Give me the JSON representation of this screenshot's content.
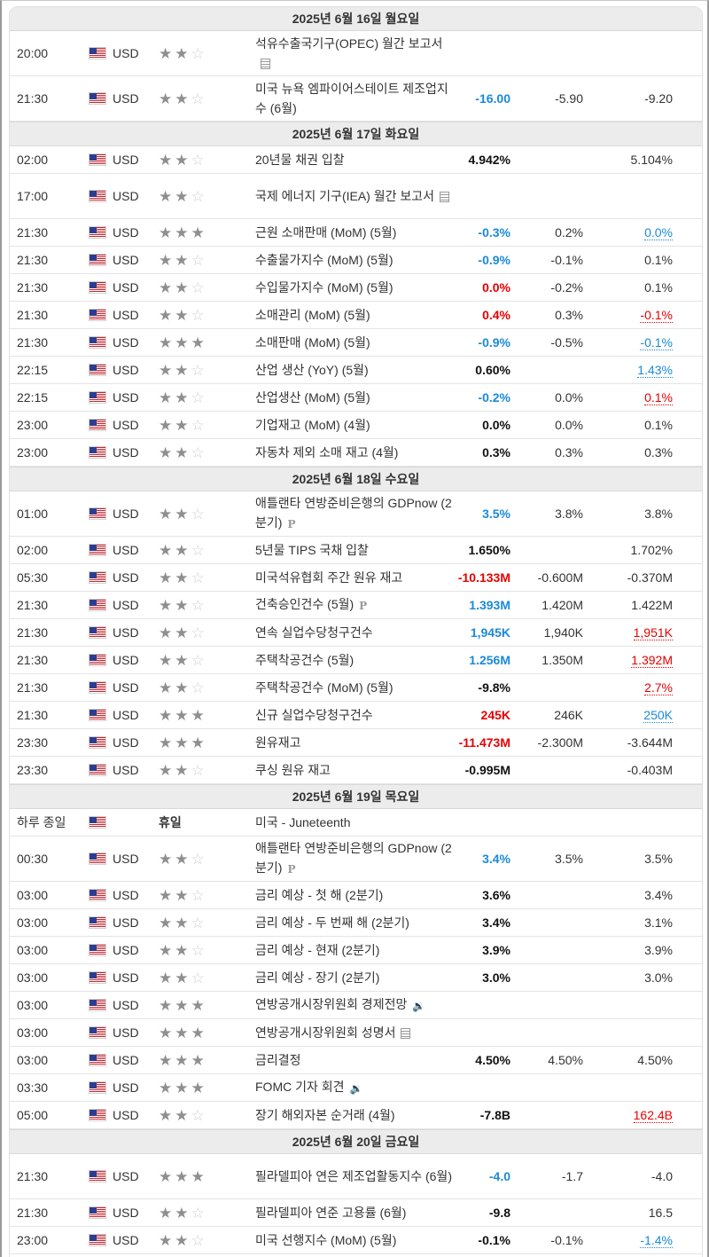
{
  "days": [
    {
      "label": "2025년 6월 16일 월요일",
      "events": [
        {
          "time": "20:00",
          "currency": "USD",
          "importance": 2,
          "event": "석유수출국기구(OPEC) 월간 보고서",
          "icon": "doc",
          "actual": "",
          "actual_class": "",
          "forecast": "",
          "previous": "",
          "previous_class": "",
          "tall": true
        },
        {
          "time": "21:30",
          "currency": "USD",
          "importance": 2,
          "event": "미국 뉴욕 엠파이어스테이트 제조업지수 (6월)",
          "icon": "",
          "actual": "-16.00",
          "actual_class": "pos",
          "forecast": "-5.90",
          "previous": "-9.20",
          "previous_class": "plain",
          "tall": true
        }
      ]
    },
    {
      "label": "2025년 6월 17일 화요일",
      "events": [
        {
          "time": "02:00",
          "currency": "USD",
          "importance": 2,
          "event": "20년물 채권 입찰",
          "icon": "",
          "actual": "4.942%",
          "actual_class": "neu",
          "forecast": "",
          "previous": "5.104%",
          "previous_class": "plain",
          "tall": false
        },
        {
          "time": "17:00",
          "currency": "USD",
          "importance": 2,
          "event": "국제 에너지 기구(IEA) 월간 보고서",
          "icon": "doc",
          "actual": "",
          "actual_class": "",
          "forecast": "",
          "previous": "",
          "previous_class": "",
          "tall": true
        },
        {
          "time": "21:30",
          "currency": "USD",
          "importance": 3,
          "event": "근원 소매판매 (MoM) (5월)",
          "icon": "",
          "actual": "-0.3%",
          "actual_class": "pos",
          "forecast": "0.2%",
          "previous": "0.0%",
          "previous_class": "up",
          "tall": false
        },
        {
          "time": "21:30",
          "currency": "USD",
          "importance": 2,
          "event": "수출물가지수 (MoM) (5월)",
          "icon": "",
          "actual": "-0.9%",
          "actual_class": "pos",
          "forecast": "-0.1%",
          "previous": "0.1%",
          "previous_class": "plain",
          "tall": false
        },
        {
          "time": "21:30",
          "currency": "USD",
          "importance": 2,
          "event": "수입물가지수 (MoM) (5월)",
          "icon": "",
          "actual": "0.0%",
          "actual_class": "neg",
          "forecast": "-0.2%",
          "previous": "0.1%",
          "previous_class": "plain",
          "tall": false
        },
        {
          "time": "21:30",
          "currency": "USD",
          "importance": 2,
          "event": "소매관리 (MoM) (5월)",
          "icon": "",
          "actual": "0.4%",
          "actual_class": "neg",
          "forecast": "0.3%",
          "previous": "-0.1%",
          "previous_class": "down",
          "tall": false
        },
        {
          "time": "21:30",
          "currency": "USD",
          "importance": 3,
          "event": "소매판매 (MoM) (5월)",
          "icon": "",
          "actual": "-0.9%",
          "actual_class": "pos",
          "forecast": "-0.5%",
          "previous": "-0.1%",
          "previous_class": "up",
          "tall": false
        },
        {
          "time": "22:15",
          "currency": "USD",
          "importance": 2,
          "event": "산업 생산 (YoY) (5월)",
          "icon": "",
          "actual": "0.60%",
          "actual_class": "neu",
          "forecast": "",
          "previous": "1.43%",
          "previous_class": "up",
          "tall": false
        },
        {
          "time": "22:15",
          "currency": "USD",
          "importance": 2,
          "event": "산업생산 (MoM) (5월)",
          "icon": "",
          "actual": "-0.2%",
          "actual_class": "pos",
          "forecast": "0.0%",
          "previous": "0.1%",
          "previous_class": "down",
          "tall": false
        },
        {
          "time": "23:00",
          "currency": "USD",
          "importance": 2,
          "event": "기업재고 (MoM) (4월)",
          "icon": "",
          "actual": "0.0%",
          "actual_class": "neu",
          "forecast": "0.0%",
          "previous": "0.1%",
          "previous_class": "plain",
          "tall": false
        },
        {
          "time": "23:00",
          "currency": "USD",
          "importance": 2,
          "event": "자동차 제외 소매 재고 (4월)",
          "icon": "",
          "actual": "0.3%",
          "actual_class": "neu",
          "forecast": "0.3%",
          "previous": "0.3%",
          "previous_class": "plain",
          "tall": false
        }
      ]
    },
    {
      "label": "2025년 6월 18일 수요일",
      "events": [
        {
          "time": "01:00",
          "currency": "USD",
          "importance": 2,
          "event": "애틀랜타 연방준비은행의 GDPnow (2분기)",
          "icon": "pre",
          "actual": "3.5%",
          "actual_class": "pos",
          "forecast": "3.8%",
          "previous": "3.8%",
          "previous_class": "plain",
          "tall": true
        },
        {
          "time": "02:00",
          "currency": "USD",
          "importance": 2,
          "event": "5년물 TIPS 국채 입찰",
          "icon": "",
          "actual": "1.650%",
          "actual_class": "neu",
          "forecast": "",
          "previous": "1.702%",
          "previous_class": "plain",
          "tall": false
        },
        {
          "time": "05:30",
          "currency": "USD",
          "importance": 2,
          "event": "미국석유협회 주간 원유 재고",
          "icon": "",
          "actual": "-10.133M",
          "actual_class": "neg",
          "forecast": "-0.600M",
          "previous": "-0.370M",
          "previous_class": "plain",
          "tall": false
        },
        {
          "time": "21:30",
          "currency": "USD",
          "importance": 2,
          "event": "건축승인건수 (5월)",
          "icon": "pre",
          "actual": "1.393M",
          "actual_class": "pos",
          "forecast": "1.420M",
          "previous": "1.422M",
          "previous_class": "plain",
          "tall": false
        },
        {
          "time": "21:30",
          "currency": "USD",
          "importance": 2,
          "event": "연속 실업수당청구건수",
          "icon": "",
          "actual": "1,945K",
          "actual_class": "pos",
          "forecast": "1,940K",
          "previous": "1,951K",
          "previous_class": "down",
          "tall": false
        },
        {
          "time": "21:30",
          "currency": "USD",
          "importance": 2,
          "event": "주택착공건수 (5월)",
          "icon": "",
          "actual": "1.256M",
          "actual_class": "pos",
          "forecast": "1.350M",
          "previous": "1.392M",
          "previous_class": "down",
          "tall": false
        },
        {
          "time": "21:30",
          "currency": "USD",
          "importance": 2,
          "event": "주택착공건수 (MoM) (5월)",
          "icon": "",
          "actual": "-9.8%",
          "actual_class": "neu",
          "forecast": "",
          "previous": "2.7%",
          "previous_class": "down",
          "tall": false
        },
        {
          "time": "21:30",
          "currency": "USD",
          "importance": 3,
          "event": "신규 실업수당청구건수",
          "icon": "",
          "actual": "245K",
          "actual_class": "neg",
          "forecast": "246K",
          "previous": "250K",
          "previous_class": "up",
          "tall": false
        },
        {
          "time": "23:30",
          "currency": "USD",
          "importance": 3,
          "event": "원유재고",
          "icon": "",
          "actual": "-11.473M",
          "actual_class": "neg",
          "forecast": "-2.300M",
          "previous": "-3.644M",
          "previous_class": "plain",
          "tall": false
        },
        {
          "time": "23:30",
          "currency": "USD",
          "importance": 2,
          "event": "쿠싱 원유 재고",
          "icon": "",
          "actual": "-0.995M",
          "actual_class": "neu",
          "forecast": "",
          "previous": "-0.403M",
          "previous_class": "plain",
          "tall": false
        }
      ]
    },
    {
      "label": "2025년 6월 19일 목요일",
      "events": [
        {
          "time": "하루 종일",
          "currency": "",
          "importance": 0,
          "holiday_label": "휴일",
          "event": "미국 - Juneteenth",
          "icon": "",
          "actual": "",
          "actual_class": "",
          "forecast": "",
          "previous": "",
          "previous_class": "",
          "tall": false
        },
        {
          "time": "00:30",
          "currency": "USD",
          "importance": 2,
          "event": "애틀랜타 연방준비은행의 GDPnow (2분기)",
          "icon": "pre",
          "actual": "3.4%",
          "actual_class": "pos",
          "forecast": "3.5%",
          "previous": "3.5%",
          "previous_class": "plain",
          "tall": true
        },
        {
          "time": "03:00",
          "currency": "USD",
          "importance": 2,
          "event": "금리 예상 - 첫 해 (2분기)",
          "icon": "",
          "actual": "3.6%",
          "actual_class": "neu",
          "forecast": "",
          "previous": "3.4%",
          "previous_class": "plain",
          "tall": false
        },
        {
          "time": "03:00",
          "currency": "USD",
          "importance": 2,
          "event": "금리 예상 - 두 번째 해 (2분기)",
          "icon": "",
          "actual": "3.4%",
          "actual_class": "neu",
          "forecast": "",
          "previous": "3.1%",
          "previous_class": "plain",
          "tall": false
        },
        {
          "time": "03:00",
          "currency": "USD",
          "importance": 2,
          "event": "금리 예상 - 현재 (2분기)",
          "icon": "",
          "actual": "3.9%",
          "actual_class": "neu",
          "forecast": "",
          "previous": "3.9%",
          "previous_class": "plain",
          "tall": false
        },
        {
          "time": "03:00",
          "currency": "USD",
          "importance": 2,
          "event": "금리 예상 - 장기 (2분기)",
          "icon": "",
          "actual": "3.0%",
          "actual_class": "neu",
          "forecast": "",
          "previous": "3.0%",
          "previous_class": "plain",
          "tall": false
        },
        {
          "time": "03:00",
          "currency": "USD",
          "importance": 3,
          "event": "연방공개시장위원회 경제전망",
          "icon": "spk",
          "actual": "",
          "actual_class": "",
          "forecast": "",
          "previous": "",
          "previous_class": "",
          "tall": false
        },
        {
          "time": "03:00",
          "currency": "USD",
          "importance": 3,
          "event": "연방공개시장위원회 성명서",
          "icon": "doc",
          "actual": "",
          "actual_class": "",
          "forecast": "",
          "previous": "",
          "previous_class": "",
          "tall": false
        },
        {
          "time": "03:00",
          "currency": "USD",
          "importance": 3,
          "event": "금리결정",
          "icon": "",
          "actual": "4.50%",
          "actual_class": "neu",
          "forecast": "4.50%",
          "previous": "4.50%",
          "previous_class": "plain",
          "tall": false
        },
        {
          "time": "03:30",
          "currency": "USD",
          "importance": 3,
          "event": "FOMC 기자 회견",
          "icon": "spk",
          "actual": "",
          "actual_class": "",
          "forecast": "",
          "previous": "",
          "previous_class": "",
          "tall": false
        },
        {
          "time": "05:00",
          "currency": "USD",
          "importance": 2,
          "event": "장기 해외자본 순거래 (4월)",
          "icon": "",
          "actual": "-7.8B",
          "actual_class": "neu",
          "forecast": "",
          "previous": "162.4B",
          "previous_class": "down",
          "tall": false
        }
      ]
    },
    {
      "label": "2025년 6월 20일 금요일",
      "events": [
        {
          "time": "21:30",
          "currency": "USD",
          "importance": 3,
          "event": "필라델피아 연은 제조업활동지수 (6월)",
          "icon": "",
          "actual": "-4.0",
          "actual_class": "pos",
          "forecast": "-1.7",
          "previous": "-4.0",
          "previous_class": "plain",
          "tall": true
        },
        {
          "time": "21:30",
          "currency": "USD",
          "importance": 2,
          "event": "필라델피아 연준 고용률 (6월)",
          "icon": "",
          "actual": "-9.8",
          "actual_class": "neu",
          "forecast": "",
          "previous": "16.5",
          "previous_class": "plain",
          "tall": false
        },
        {
          "time": "23:00",
          "currency": "USD",
          "importance": 2,
          "event": "미국 선행지수 (MoM) (5월)",
          "icon": "",
          "actual": "-0.1%",
          "actual_class": "neu",
          "forecast": "-0.1%",
          "previous": "-1.4%",
          "previous_class": "up",
          "tall": false
        }
      ]
    }
  ]
}
